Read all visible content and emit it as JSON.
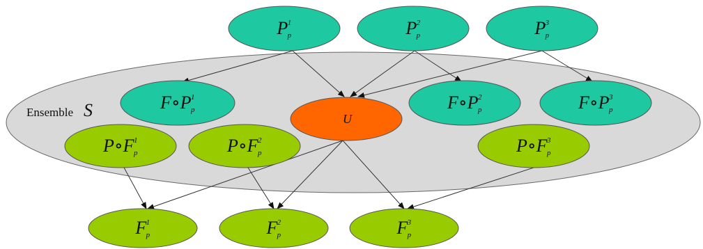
{
  "ensemble": {
    "label": "Ensemble",
    "symbol": "S",
    "color": "#d9d9d9"
  },
  "colors": {
    "teal": "#1ec8a0",
    "orange": "#ff6600",
    "green": "#99cc00"
  },
  "nodes": {
    "pp1": {
      "main": "P",
      "sub": "p",
      "sup": "1",
      "color": "teal"
    },
    "pp2": {
      "main": "P",
      "sub": "p",
      "sup": "2",
      "color": "teal"
    },
    "pp3": {
      "main": "P",
      "sub": "p",
      "sup": "3",
      "color": "teal"
    },
    "fpp1": {
      "main": "F∘P",
      "sub": "p",
      "sup": "1",
      "color": "teal"
    },
    "fpp2": {
      "main": "F∘P",
      "sub": "p",
      "sup": "2",
      "color": "teal"
    },
    "fpp3": {
      "main": "F∘P",
      "sub": "p",
      "sup": "3",
      "color": "teal"
    },
    "u": {
      "main": "U",
      "color": "orange"
    },
    "pfp1": {
      "main": "P∘F",
      "sub": "p",
      "sup": "1",
      "color": "green"
    },
    "pfp2": {
      "main": "P∘F",
      "sub": "p",
      "sup": "2",
      "color": "green"
    },
    "pfp3": {
      "main": "P∘F",
      "sub": "p",
      "sup": "3",
      "color": "green"
    },
    "fp1": {
      "main": "F",
      "sub": "p",
      "sup": "1",
      "color": "green"
    },
    "fp2": {
      "main": "F",
      "sub": "p",
      "sup": "2",
      "color": "green"
    },
    "fp3": {
      "main": "F",
      "sub": "p",
      "sup": "3",
      "color": "green"
    }
  },
  "edges": [
    {
      "from": "pp1",
      "to": "fpp1"
    },
    {
      "from": "pp1",
      "to": "u"
    },
    {
      "from": "pp2",
      "to": "u"
    },
    {
      "from": "pp2",
      "to": "fpp2"
    },
    {
      "from": "pp3",
      "to": "u"
    },
    {
      "from": "pp3",
      "to": "fpp3"
    },
    {
      "from": "u",
      "to": "fp1"
    },
    {
      "from": "u",
      "to": "fp2"
    },
    {
      "from": "u",
      "to": "fp3"
    },
    {
      "from": "pfp1",
      "to": "fp1"
    },
    {
      "from": "pfp2",
      "to": "fp2"
    },
    {
      "from": "pfp3",
      "to": "fp3"
    }
  ]
}
